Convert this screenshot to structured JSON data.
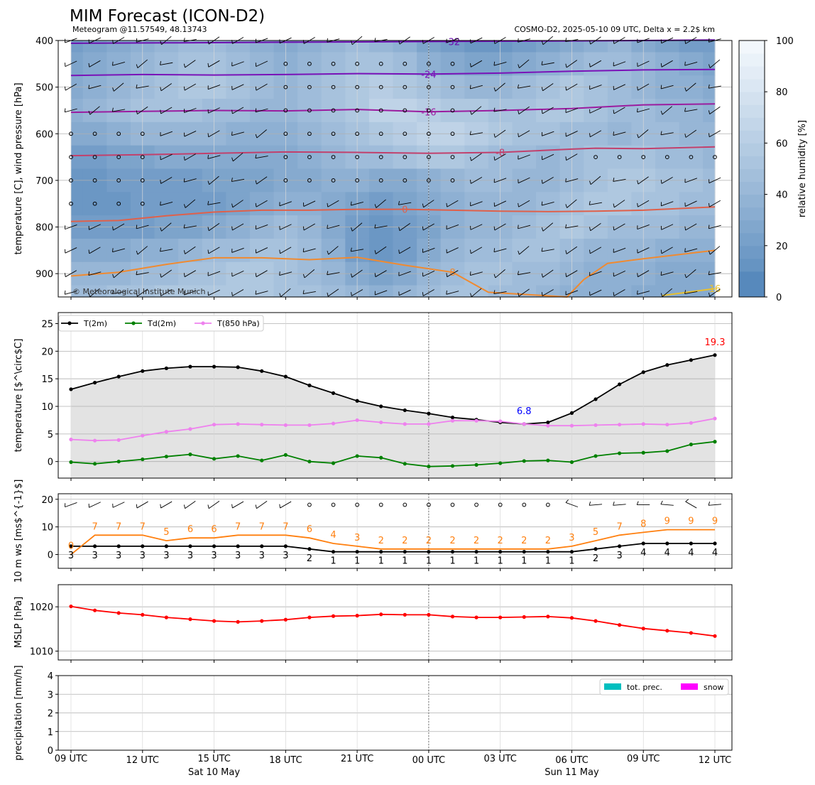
{
  "header": {
    "title": "MIM Forecast (ICON-D2)",
    "subtitle_left": "Meteogram @11.57549, 48.13743",
    "subtitle_right": "COSMO-D2, 2025-05-10 09 UTC, Delta x = 2.2$ km",
    "copyright": "© Meteorological Institute Munich"
  },
  "time_axis": {
    "tick_labels": [
      "09 UTC",
      "12 UTC",
      "15 UTC",
      "18 UTC",
      "21 UTC",
      "00 UTC",
      "03 UTC",
      "06 UTC",
      "09 UTC",
      "12 UTC"
    ],
    "day_labels": [
      "Sat 10 May",
      "Sun 11 May"
    ],
    "hours": [
      0,
      1,
      2,
      3,
      4,
      5,
      6,
      7,
      8,
      9,
      10,
      11,
      12,
      13,
      14,
      15,
      16,
      17,
      18,
      19,
      20,
      21,
      22,
      23,
      24,
      25,
      26,
      27
    ]
  },
  "chart_data": [
    {
      "type": "heatmap",
      "name": "upper-air",
      "ylabel": "temperature [C], wind pressure [hPa]",
      "ylim": [
        950,
        400
      ],
      "yticks": [
        400,
        500,
        600,
        700,
        800,
        900
      ],
      "colorbar": {
        "label": "relative humidity [%]",
        "ticks": [
          0,
          20,
          40,
          60,
          80,
          100
        ],
        "levels": [
          0,
          10,
          15,
          20,
          25,
          30,
          35,
          40,
          45,
          50,
          55,
          60,
          65,
          70,
          75,
          80,
          85,
          90,
          95,
          100
        ]
      },
      "pressure_levels": [
        400,
        450,
        500,
        550,
        600,
        650,
        700,
        750,
        800,
        850,
        900,
        950
      ],
      "humidity": [
        [
          20,
          25,
          30,
          35,
          40,
          45,
          45,
          40,
          35,
          30,
          35,
          40,
          45,
          40,
          35,
          25,
          20,
          15,
          15,
          20,
          25,
          30,
          35,
          40,
          30,
          25,
          20,
          20
        ],
        [
          25,
          30,
          35,
          40,
          45,
          50,
          50,
          45,
          40,
          35,
          40,
          45,
          50,
          50,
          45,
          35,
          30,
          25,
          25,
          30,
          35,
          40,
          45,
          45,
          40,
          35,
          30,
          25
        ],
        [
          30,
          35,
          40,
          45,
          50,
          55,
          55,
          50,
          45,
          40,
          45,
          50,
          55,
          60,
          55,
          50,
          45,
          40,
          40,
          45,
          50,
          55,
          50,
          45,
          40,
          35,
          35,
          30
        ],
        [
          35,
          40,
          45,
          50,
          50,
          50,
          45,
          45,
          40,
          40,
          45,
          50,
          55,
          65,
          65,
          60,
          55,
          55,
          50,
          50,
          55,
          55,
          50,
          45,
          45,
          40,
          40,
          35
        ],
        [
          30,
          30,
          35,
          40,
          40,
          40,
          40,
          35,
          35,
          35,
          40,
          45,
          50,
          55,
          60,
          65,
          65,
          60,
          55,
          50,
          50,
          45,
          45,
          40,
          45,
          45,
          40,
          40
        ],
        [
          20,
          20,
          25,
          25,
          30,
          30,
          30,
          30,
          30,
          30,
          35,
          40,
          45,
          45,
          50,
          55,
          55,
          50,
          45,
          45,
          40,
          45,
          50,
          50,
          50,
          45,
          45,
          40
        ],
        [
          15,
          15,
          20,
          20,
          20,
          20,
          25,
          25,
          25,
          30,
          30,
          35,
          35,
          30,
          30,
          35,
          40,
          45,
          45,
          40,
          40,
          45,
          50,
          55,
          55,
          50,
          50,
          45
        ],
        [
          15,
          15,
          15,
          20,
          20,
          20,
          20,
          25,
          30,
          35,
          35,
          30,
          25,
          20,
          25,
          30,
          35,
          40,
          40,
          40,
          45,
          50,
          55,
          55,
          50,
          50,
          45,
          45
        ],
        [
          20,
          20,
          20,
          20,
          25,
          25,
          30,
          35,
          40,
          45,
          40,
          30,
          20,
          15,
          20,
          25,
          35,
          40,
          40,
          45,
          50,
          55,
          50,
          45,
          45,
          45,
          40,
          40
        ],
        [
          30,
          30,
          30,
          35,
          35,
          40,
          45,
          45,
          50,
          50,
          45,
          35,
          20,
          15,
          20,
          30,
          40,
          45,
          45,
          50,
          50,
          45,
          40,
          40,
          40,
          35,
          35,
          35
        ],
        [
          40,
          40,
          40,
          45,
          45,
          50,
          50,
          55,
          55,
          50,
          45,
          40,
          30,
          25,
          30,
          40,
          45,
          50,
          50,
          45,
          45,
          40,
          35,
          35,
          35,
          30,
          30,
          30
        ],
        [
          45,
          45,
          50,
          50,
          55,
          55,
          55,
          55,
          55,
          50,
          50,
          45,
          40,
          35,
          40,
          45,
          50,
          50,
          45,
          45,
          40,
          35,
          35,
          35,
          30,
          30,
          30,
          30
        ]
      ],
      "isotherms": [
        {
          "label": "-32",
          "color": "#6a0dad",
          "points": [
            [
              0,
              406
            ],
            [
              4,
              405
            ],
            [
              8,
              404
            ],
            [
              12,
              403
            ],
            [
              16,
              402
            ],
            [
              20,
              401
            ],
            [
              24,
              400
            ],
            [
              27,
              399
            ]
          ]
        },
        {
          "label": "-24",
          "color": "#7a12b8",
          "points": [
            [
              0,
              475
            ],
            [
              3,
              473
            ],
            [
              6,
              474
            ],
            [
              9,
              473
            ],
            [
              12,
              471
            ],
            [
              15,
              472
            ],
            [
              18,
              470
            ],
            [
              21,
              466
            ],
            [
              24,
              463
            ],
            [
              27,
              462
            ]
          ]
        },
        {
          "label": "-16",
          "color": "#9b1c9f",
          "points": [
            [
              0,
              554
            ],
            [
              3,
              552
            ],
            [
              6,
              550
            ],
            [
              9,
              551
            ],
            [
              12,
              548
            ],
            [
              15,
              553
            ],
            [
              18,
              550
            ],
            [
              21,
              546
            ],
            [
              24,
              538
            ],
            [
              27,
              536
            ]
          ]
        },
        {
          "label": "-8",
          "color": "#c2406c",
          "points": [
            [
              0,
              647
            ],
            [
              3,
              645
            ],
            [
              6,
              642
            ],
            [
              9,
              639
            ],
            [
              12,
              640
            ],
            [
              15,
              642
            ],
            [
              18,
              640
            ],
            [
              21,
              633
            ],
            [
              22,
              631
            ],
            [
              24,
              632
            ],
            [
              27,
              628
            ]
          ]
        },
        {
          "label": "0",
          "color": "#e0604a",
          "points": [
            [
              0,
              788
            ],
            [
              2,
              786
            ],
            [
              4,
              776
            ],
            [
              6,
              768
            ],
            [
              8,
              764
            ],
            [
              10,
              764
            ],
            [
              12,
              762
            ],
            [
              14,
              762
            ],
            [
              16,
              764
            ],
            [
              18,
              766
            ],
            [
              20,
              767
            ],
            [
              22,
              766
            ],
            [
              24,
              764
            ],
            [
              27,
              757
            ]
          ]
        },
        {
          "label": "8",
          "color": "#f08a30",
          "points": [
            [
              0,
              905
            ],
            [
              2,
              897
            ],
            [
              4,
              880
            ],
            [
              6,
              866
            ],
            [
              8,
              866
            ],
            [
              10,
              870
            ],
            [
              12,
              865
            ],
            [
              14,
              882
            ],
            [
              16,
              897
            ],
            [
              17.5,
              940
            ],
            [
              20.8,
              950
            ],
            [
              21.5,
              913
            ],
            [
              22.5,
              878
            ],
            [
              24,
              868
            ],
            [
              27,
              850
            ]
          ]
        },
        {
          "label": "16",
          "color": "#e8c030",
          "points": [
            [
              24.8,
              947
            ],
            [
              27,
              932
            ]
          ]
        }
      ],
      "wind_calm_levels_note": "circles mark calm"
    },
    {
      "type": "line",
      "name": "surface-temperature",
      "ylabel": "temperature [$^\\circ$C]",
      "ylim": [
        -3,
        27
      ],
      "yticks": [
        0,
        5,
        10,
        15,
        20,
        25
      ],
      "series": [
        {
          "name": "T(2m)",
          "color": "#000000",
          "values": [
            13.1,
            14.3,
            15.4,
            16.4,
            16.9,
            17.2,
            17.2,
            17.1,
            16.4,
            15.4,
            13.8,
            12.4,
            11.0,
            10.0,
            9.3,
            8.7,
            8.0,
            7.6,
            7.1,
            6.8,
            7.1,
            8.8,
            11.3,
            14.0,
            16.2,
            17.5,
            18.4,
            19.3
          ]
        },
        {
          "name": "Td(2m)",
          "color": "#008000",
          "values": [
            -0.1,
            -0.4,
            0.0,
            0.4,
            0.9,
            1.3,
            0.5,
            1.0,
            0.2,
            1.2,
            0.0,
            -0.3,
            1.0,
            0.7,
            -0.4,
            -0.9,
            -0.8,
            -0.6,
            -0.3,
            0.1,
            0.2,
            -0.1,
            1.0,
            1.5,
            1.6,
            1.9,
            3.1,
            3.6
          ]
        },
        {
          "name": "T(850 hPa)",
          "color": "#ee82ee",
          "values": [
            4.0,
            3.8,
            3.9,
            4.7,
            5.4,
            5.9,
            6.7,
            6.8,
            6.7,
            6.6,
            6.6,
            6.9,
            7.5,
            7.1,
            6.8,
            6.8,
            7.4,
            7.4,
            7.3,
            6.8,
            6.5,
            6.5,
            6.6,
            6.7,
            6.8,
            6.7,
            7.0,
            7.8
          ]
        }
      ],
      "annotations": [
        {
          "text": "19.3",
          "color": "#ff0000",
          "x": 27,
          "y": 19.3
        },
        {
          "text": "6.8",
          "color": "#0000ff",
          "x": 19,
          "y": 6.8
        }
      ]
    },
    {
      "type": "line",
      "name": "wind-speed",
      "ylabel": "10 m ws [ms$^{-1}$]",
      "ylim": [
        -5,
        22
      ],
      "yticks": [
        0,
        10,
        20
      ],
      "series": [
        {
          "name": "wind speed",
          "color": "#000000",
          "values": [
            3,
            3,
            3,
            3,
            3,
            3,
            3,
            3,
            3,
            3,
            2,
            1,
            1,
            1,
            1,
            1,
            1,
            1,
            1,
            1,
            1,
            1,
            2,
            3,
            4,
            4,
            4,
            4
          ]
        },
        {
          "name": "gusts",
          "color": "#ff7f0e",
          "values": [
            0,
            7,
            7,
            7,
            5,
            6,
            6,
            7,
            7,
            7,
            6,
            4,
            3,
            2,
            2,
            2,
            2,
            2,
            2,
            2,
            2,
            3,
            5,
            7,
            8,
            9,
            9,
            9
          ]
        }
      ],
      "speed_labels": [
        "3",
        "3",
        "3",
        "3",
        "3",
        "3",
        "3",
        "3",
        "3",
        "3",
        "2",
        "1",
        "1",
        "1",
        "1",
        "1",
        "1",
        "1",
        "1",
        "1",
        "1",
        "1",
        "2",
        "3",
        "4",
        "4",
        "4",
        "4"
      ],
      "gust_labels": [
        "0",
        "7",
        "7",
        "7",
        "5",
        "6",
        "6",
        "7",
        "7",
        "7",
        "6",
        "4",
        "3",
        "2",
        "2",
        "2",
        "2",
        "2",
        "2",
        "2",
        "2",
        "3",
        "5",
        "7",
        "8",
        "9",
        "9",
        "9"
      ],
      "wind_barb_dirs_deg": [
        250,
        245,
        245,
        240,
        240,
        235,
        235,
        240,
        235,
        240,
        null,
        null,
        null,
        null,
        null,
        null,
        null,
        null,
        null,
        null,
        null,
        290,
        265,
        265,
        270,
        275,
        300,
        265
      ]
    },
    {
      "type": "line",
      "name": "mslp",
      "ylabel": "MSLP [hPa]",
      "ylim": [
        1008,
        1025
      ],
      "yticks": [
        1010,
        1020
      ],
      "series": [
        {
          "name": "MSLP",
          "color": "#ff0000",
          "values": [
            1020.1,
            1019.2,
            1018.6,
            1018.2,
            1017.6,
            1017.2,
            1016.8,
            1016.6,
            1016.8,
            1017.1,
            1017.6,
            1017.9,
            1018.0,
            1018.3,
            1018.2,
            1018.2,
            1017.8,
            1017.6,
            1017.6,
            1017.7,
            1017.8,
            1017.5,
            1016.8,
            1015.9,
            1015.1,
            1014.6,
            1014.1,
            1013.4
          ]
        }
      ]
    },
    {
      "type": "bar",
      "name": "precipitation",
      "ylabel": "precipitation [mm/h]",
      "ylim": [
        0,
        4
      ],
      "yticks": [
        0,
        1,
        2,
        3,
        4
      ],
      "legend": [
        {
          "name": "tot. prec.",
          "color": "#00bfbf"
        },
        {
          "name": "snow",
          "color": "#ff00ff"
        }
      ],
      "tot_prec": [
        0,
        0,
        0,
        0,
        0,
        0,
        0,
        0,
        0,
        0,
        0,
        0,
        0,
        0,
        0,
        0,
        0,
        0,
        0,
        0,
        0,
        0,
        0,
        0,
        0,
        0,
        0,
        0
      ],
      "snow": [
        0,
        0,
        0,
        0,
        0,
        0,
        0,
        0,
        0,
        0,
        0,
        0,
        0,
        0,
        0,
        0,
        0,
        0,
        0,
        0,
        0,
        0,
        0,
        0,
        0,
        0,
        0,
        0
      ]
    }
  ]
}
